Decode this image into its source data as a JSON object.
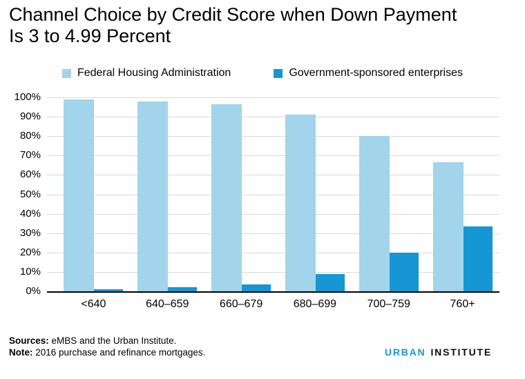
{
  "page": {
    "title_line1": "Channel Choice by Credit Score when Down Payment",
    "title_line2": "Is 3 to 4.99 Percent"
  },
  "chart_data": {
    "type": "bar",
    "title": "Channel Choice by Credit Score when Down Payment Is 3 to 4.99 Percent",
    "xlabel": "",
    "ylabel": "",
    "categories": [
      "<640",
      "640–659",
      "660–679",
      "680–699",
      "700–759",
      "760+"
    ],
    "series": [
      {
        "name": "Federal Housing Administration",
        "color": "#a2d4ec",
        "values": [
          99,
          98,
          96.5,
          91,
          80,
          66.5
        ]
      },
      {
        "name": "Government-sponsored enterprises",
        "color": "#1696d2",
        "values": [
          1,
          2,
          3.5,
          9,
          20,
          33.5
        ]
      }
    ],
    "ylim": [
      0,
      100
    ],
    "ytick_step": 10,
    "ytick_labels": [
      "0%",
      "10%",
      "20%",
      "30%",
      "40%",
      "50%",
      "60%",
      "70%",
      "80%",
      "90%",
      "100%"
    ],
    "grid": true,
    "gridline_color": "#d9d9d9",
    "axis_color": "#000000",
    "legend_position": "top"
  },
  "footer": {
    "sources_label": "Sources:",
    "sources_text": " eMBS and the Urban Institute.",
    "note_label": "Note:",
    "note_text": " 2016 purchase and refinance mortgages.",
    "logo_part1": "URBAN",
    "logo_part2": "INSTITUTE"
  },
  "colors": {
    "fha_light_blue": "#a2d4ec",
    "gse_blue": "#1696d2",
    "logo_urban": "#1696d2",
    "logo_institute": "#0b0b0b",
    "text": "#000000",
    "gridline": "#d9d9d9",
    "axis": "#000000"
  }
}
